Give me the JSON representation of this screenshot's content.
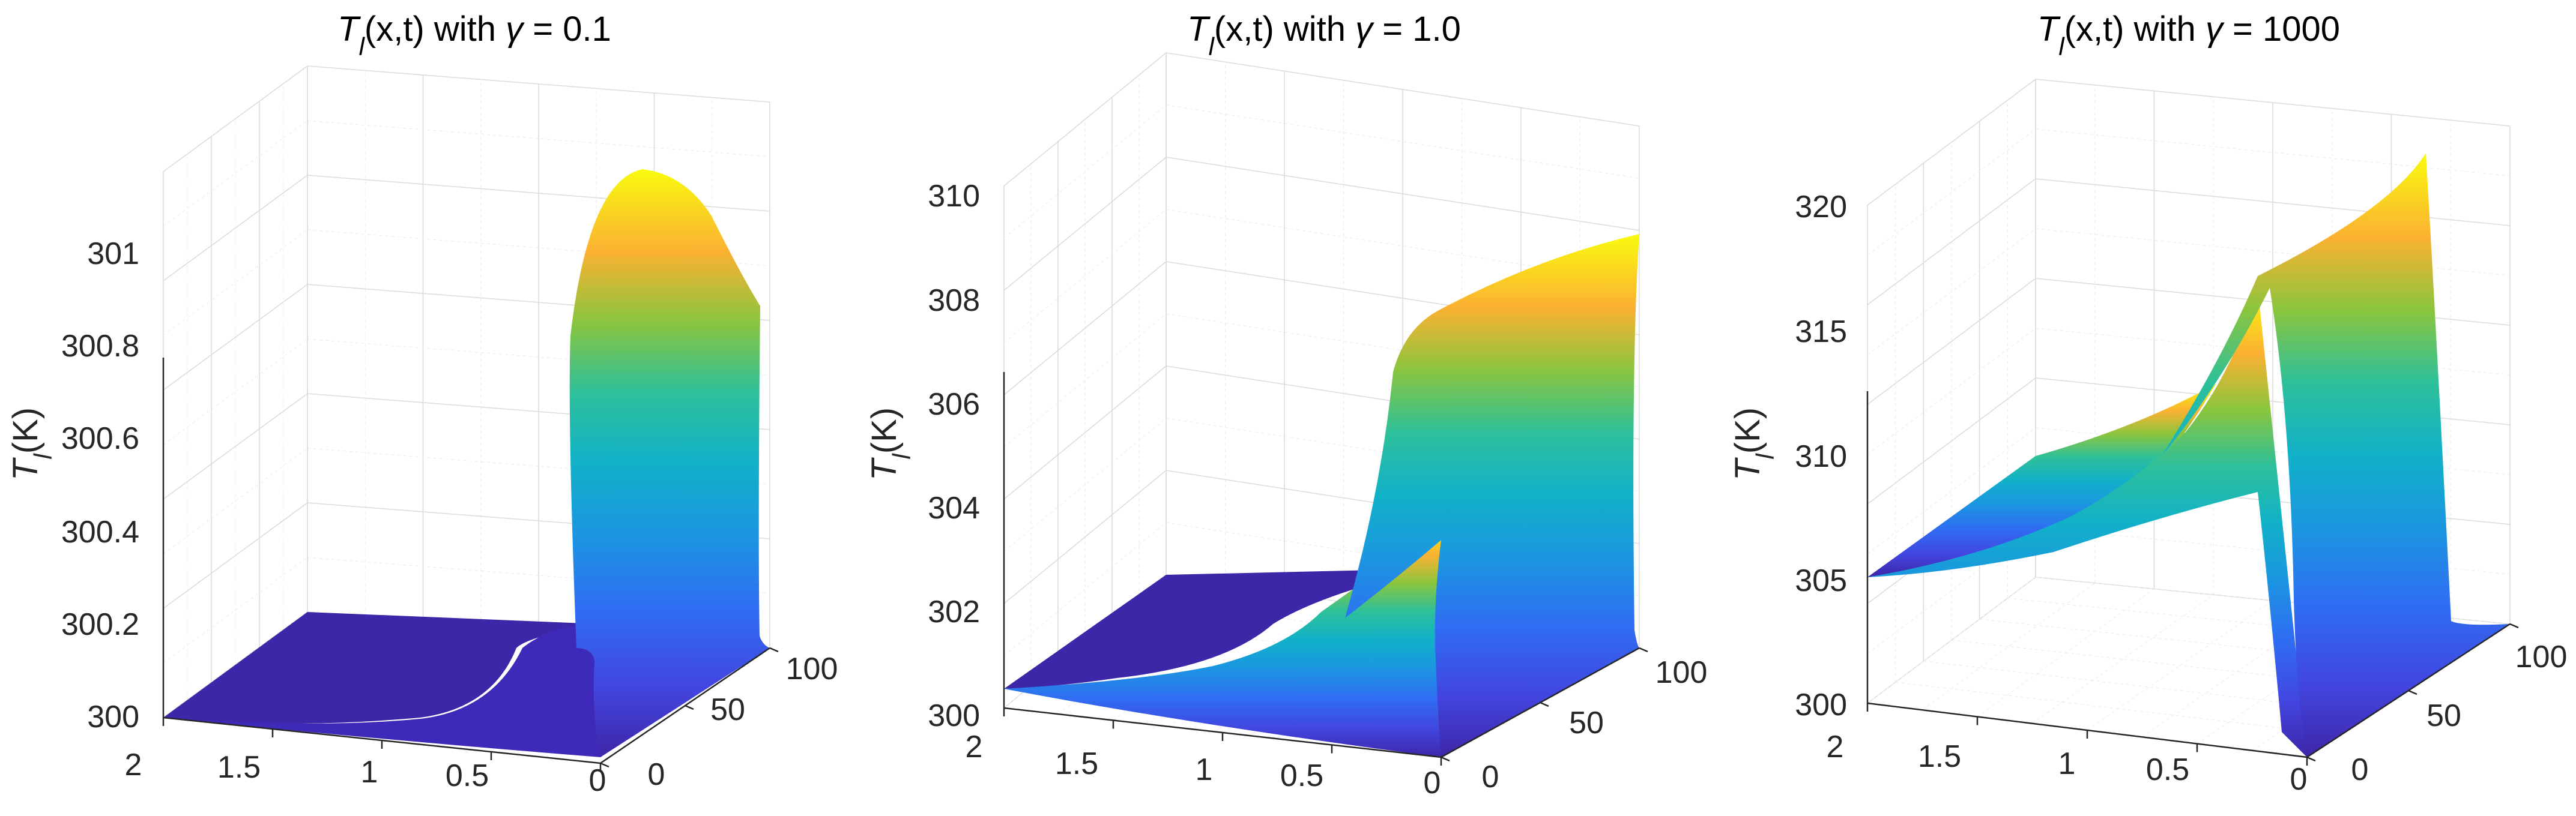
{
  "colors": {
    "colormap": "parula",
    "background": "#ffffff",
    "axis": "#262626",
    "grid": "#dcdcdc"
  },
  "chart_data": [
    {
      "type": "surface3d",
      "title": {
        "var": "T",
        "sub": "l",
        "args": "(x,t) with ",
        "param": "γ",
        "rest": " = 0.1"
      },
      "zlabel": {
        "var": "T",
        "sub": "l",
        "unit": "(K)"
      },
      "x_ticks": [
        "2",
        "1.5",
        "1",
        "0.5",
        "0"
      ],
      "t_ticks": [
        "0",
        "50",
        "100"
      ],
      "z_ticks": [
        "300",
        "300.2",
        "300.4",
        "300.6",
        "300.8",
        "301"
      ],
      "xlim": [
        0,
        2
      ],
      "tlim": [
        0,
        100
      ],
      "zlim": [
        300,
        301.15
      ],
      "grid": true,
      "surface": {
        "baseline": 300.0,
        "peak": 301.08,
        "peak_x": 0.3,
        "rise": 301.0
      }
    },
    {
      "type": "surface3d",
      "title": {
        "var": "T",
        "sub": "l",
        "args": "(x,t) with ",
        "param": "γ",
        "rest": " = 1.0"
      },
      "zlabel": {
        "var": "T",
        "sub": "l",
        "unit": "(K)"
      },
      "x_ticks": [
        "2",
        "1.5",
        "1",
        "0.5",
        "0"
      ],
      "t_ticks": [
        "0",
        "50",
        "100"
      ],
      "z_ticks": [
        "300",
        "302",
        "304",
        "306",
        "308",
        "310"
      ],
      "xlim": [
        0,
        2
      ],
      "tlim": [
        0,
        100
      ],
      "zlim": [
        300,
        310
      ],
      "grid": true,
      "surface": {
        "baseline": 300.0,
        "left_end": 300.4,
        "peak": 309.7,
        "knee": 308.6
      }
    },
    {
      "type": "surface3d",
      "title": {
        "var": "T",
        "sub": "l",
        "args": "(x,t) with ",
        "param": "γ",
        "rest": " = 1000"
      },
      "zlabel": {
        "var": "T",
        "sub": "l",
        "unit": "(K)"
      },
      "x_ticks": [
        "2",
        "1.5",
        "1",
        "0.5",
        "0"
      ],
      "t_ticks": [
        "0",
        "50",
        "100"
      ],
      "z_ticks": [
        "300",
        "305",
        "310",
        "315",
        "320"
      ],
      "xlim": [
        0,
        2
      ],
      "tlim": [
        0,
        100
      ],
      "zlim": [
        300,
        320
      ],
      "grid": true,
      "surface": {
        "baseline": 300.0,
        "left_end": 305.0,
        "peak": 320.4,
        "knee": 318.8
      }
    }
  ]
}
